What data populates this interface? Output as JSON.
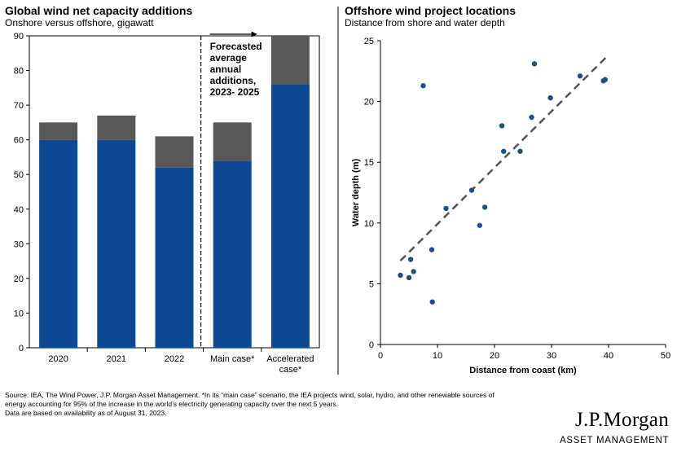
{
  "left_panel": {
    "title": "Global wind net capacity additions",
    "subtitle": "Onshore versus offshore, gigawatt",
    "annotation_lines": [
      "Forecasted",
      "average",
      "annual",
      "additions,",
      "2023- 2025"
    ]
  },
  "right_panel": {
    "title": "Offshore wind project locations",
    "subtitle": "Distance from shore and water depth"
  },
  "footnote": {
    "line1": "Source: IEA, The Wind Power, J.P. Morgan Asset Management. *In its “main case” scenario, the IEA projects wind, solar, hydro, and other renewable sources of",
    "line2": "energy accounting for 95% of the increase in the world’s electricity generating capacity over the next 5 years.",
    "line3": "Data are based on availability as of August 31, 2023."
  },
  "logo": {
    "name": "J.P.Morgan",
    "tagline": "ASSET MANAGEMENT"
  },
  "colors": {
    "onshore": "#0d4892",
    "offshore": "#585858",
    "scatter": "#1b4f8e",
    "trend": "#555555"
  },
  "chart_data": [
    {
      "type": "bar",
      "stacked": true,
      "categories": [
        "2020",
        "2021",
        "2022",
        "Main case*",
        "Accelerated case*"
      ],
      "category_lines": [
        [
          "2020"
        ],
        [
          "2021"
        ],
        [
          "2022"
        ],
        [
          "Main case*"
        ],
        [
          "Accelerated",
          "case*"
        ]
      ],
      "series": [
        {
          "values": [
            60,
            60,
            52,
            54,
            76
          ]
        },
        {
          "values": [
            5,
            7,
            9,
            11,
            14
          ]
        }
      ],
      "yticks": [
        0,
        10,
        20,
        30,
        40,
        50,
        60,
        70,
        80,
        90
      ],
      "ylim": [
        0,
        90
      ],
      "xlabel": "",
      "ylabel": ""
    },
    {
      "type": "scatter",
      "xlabel": "Distance from coast (km)",
      "ylabel": "Water depth (m)",
      "xlim": [
        0,
        50
      ],
      "ylim": [
        0,
        25
      ],
      "xticks": [
        0,
        10,
        20,
        30,
        40,
        50
      ],
      "yticks": [
        0,
        5,
        10,
        15,
        20,
        25
      ],
      "points": [
        [
          3.5,
          5.7
        ],
        [
          5.0,
          5.5
        ],
        [
          5.3,
          7.0
        ],
        [
          5.8,
          6.0
        ],
        [
          7.5,
          21.3
        ],
        [
          9.0,
          7.8
        ],
        [
          9.1,
          3.5
        ],
        [
          11.5,
          11.2
        ],
        [
          16.0,
          12.7
        ],
        [
          17.4,
          9.8
        ],
        [
          18.3,
          11.3
        ],
        [
          21.3,
          18.0
        ],
        [
          21.6,
          15.9
        ],
        [
          24.5,
          15.9
        ],
        [
          26.5,
          18.7
        ],
        [
          27.0,
          23.1
        ],
        [
          29.8,
          20.3
        ],
        [
          35.0,
          22.1
        ],
        [
          39.1,
          21.7
        ],
        [
          39.4,
          21.8
        ]
      ],
      "trendline": {
        "x": [
          3.5,
          39.5
        ],
        "y": [
          6.9,
          23.6
        ]
      }
    }
  ]
}
